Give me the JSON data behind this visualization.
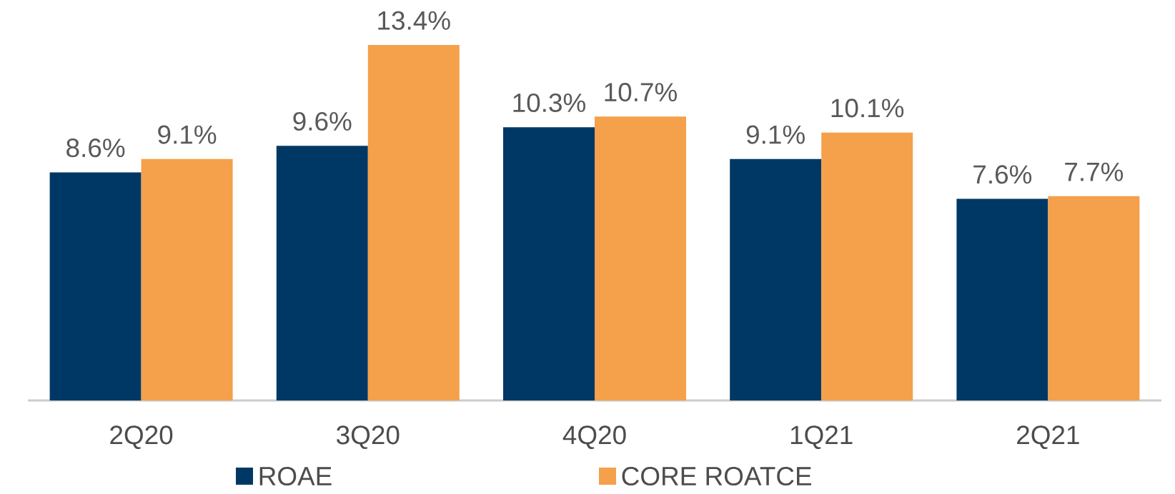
{
  "chart_data": {
    "type": "bar",
    "categories": [
      "2Q20",
      "3Q20",
      "4Q20",
      "1Q21",
      "2Q21"
    ],
    "series": [
      {
        "name": "ROAE",
        "color": "#003865",
        "values": [
          8.6,
          9.6,
          10.3,
          9.1,
          7.6
        ],
        "value_labels": [
          "8.6%",
          "9.6%",
          "10.3%",
          "9.1%",
          "7.6%"
        ]
      },
      {
        "name": "CORE ROATCE",
        "color": "#f5a04a",
        "values": [
          9.1,
          13.4,
          10.7,
          10.1,
          7.7
        ],
        "value_labels": [
          "9.1%",
          "13.4%",
          "10.7%",
          "10.1%",
          "7.7%"
        ]
      }
    ],
    "legend": "bottom"
  }
}
